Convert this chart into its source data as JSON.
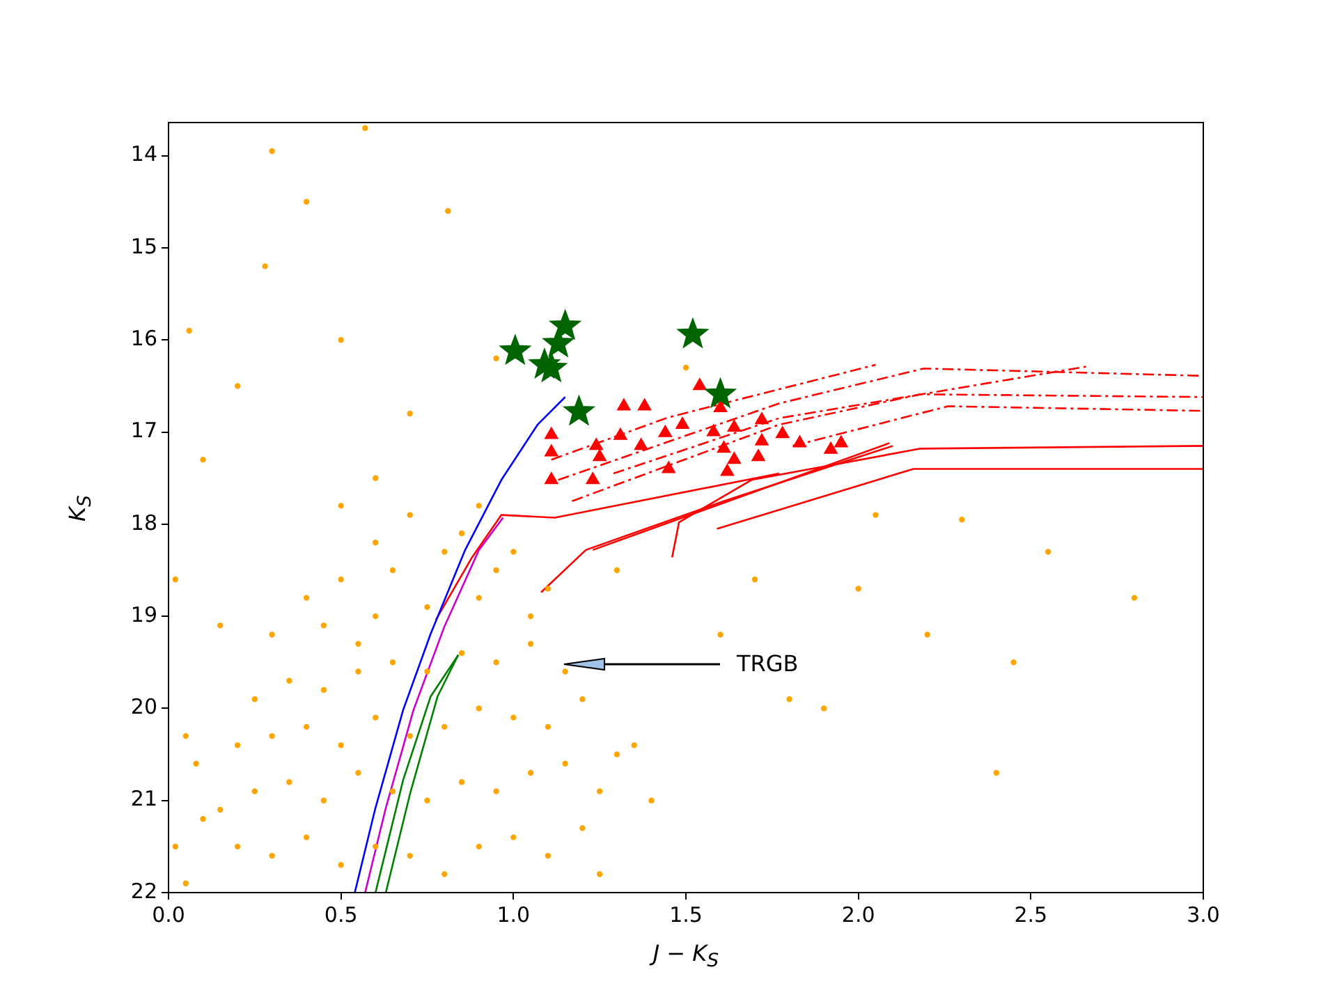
{
  "chart_data": {
    "type": "scatter",
    "xlabel": "J − K$_{S}$",
    "ylabel": "K$_{S}$",
    "xlim": [
      0,
      3
    ],
    "ylim": [
      22,
      13.64
    ],
    "xticks": [
      {
        "value": 0,
        "label": "0.0"
      },
      {
        "value": 0.5,
        "label": "0.5"
      },
      {
        "value": 1,
        "label": "1.0"
      },
      {
        "value": 1.5,
        "label": "1.5"
      },
      {
        "value": 2,
        "label": "2.0"
      },
      {
        "value": 2.5,
        "label": "2.5"
      },
      {
        "value": 3,
        "label": "3.0"
      }
    ],
    "yticks": [
      14,
      15,
      16,
      17,
      18,
      19,
      20,
      21,
      22
    ],
    "grid": false,
    "legend": false,
    "annotations": [
      "TRGB"
    ],
    "series": [
      {
        "marker": "circle",
        "color": "#ffa500",
        "x": [
          0.3,
          0.4,
          0.57,
          0.81,
          0.28,
          0.06,
          0.2,
          0.5,
          0.95,
          1.5,
          2.05,
          2.3,
          2.55,
          2.8,
          2.4,
          1.9,
          2.2,
          1.7,
          2.0,
          0.02,
          0.1,
          0.5,
          0.7,
          0.6,
          1.3,
          1.6,
          2.45,
          1.8,
          0.15,
          0.05,
          0.2,
          0.3,
          0.4,
          0.5,
          0.6,
          0.7,
          0.8,
          0.9,
          1.0,
          1.1,
          1.2,
          0.25,
          0.35,
          0.45,
          0.55,
          0.65,
          0.75,
          0.85,
          0.95,
          1.05,
          1.15,
          1.25,
          0.1,
          0.2,
          0.3,
          0.4,
          0.5,
          0.6,
          0.7,
          0.8,
          0.9,
          1.0,
          1.1,
          1.2,
          1.3,
          0.05,
          0.15,
          0.25,
          0.35,
          0.45,
          0.55,
          0.65,
          0.75,
          0.85,
          0.95,
          1.05,
          1.15,
          0.3,
          0.45,
          0.6,
          0.75,
          0.9,
          1.05,
          0.5,
          0.65,
          0.8,
          0.95,
          1.1,
          0.7,
          0.85,
          1.0,
          0.6,
          0.9,
          1.4,
          1.35,
          0.02,
          0.08,
          1.25,
          0.4,
          0.55
        ],
        "values": [
          13.95,
          14.5,
          13.7,
          14.6,
          15.2,
          15.9,
          16.5,
          16.0,
          16.2,
          16.3,
          17.9,
          17.95,
          18.3,
          18.8,
          20.7,
          20.0,
          19.2,
          18.6,
          18.7,
          18.6,
          17.3,
          17.8,
          16.8,
          18.2,
          18.5,
          19.2,
          19.5,
          19.9,
          19.1,
          20.3,
          21.5,
          21.6,
          21.4,
          21.7,
          21.5,
          21.6,
          21.8,
          21.5,
          21.4,
          21.6,
          21.3,
          20.9,
          20.8,
          21.0,
          20.7,
          20.9,
          21.0,
          20.8,
          20.9,
          20.7,
          20.6,
          20.9,
          21.2,
          20.4,
          20.3,
          20.2,
          20.4,
          20.1,
          20.3,
          20.2,
          20.0,
          20.1,
          20.2,
          19.9,
          20.5,
          21.9,
          21.1,
          19.9,
          19.7,
          19.8,
          19.6,
          19.5,
          19.6,
          19.4,
          19.5,
          19.3,
          19.6,
          19.2,
          19.1,
          19.0,
          18.9,
          18.8,
          19.0,
          18.6,
          18.5,
          18.3,
          18.5,
          18.7,
          17.9,
          18.1,
          18.3,
          17.5,
          17.8,
          21.0,
          20.4,
          21.5,
          20.6,
          21.8,
          18.8,
          19.3
        ]
      },
      {
        "type": "line",
        "marker": "none",
        "line_style": "solid",
        "color": "#0000ff",
        "x": [
          0.54,
          0.6,
          0.68,
          0.76,
          0.86,
          0.965,
          1.07,
          1.15
        ],
        "values": [
          22,
          21.08,
          20.02,
          19.19,
          18.28,
          17.52,
          16.92,
          16.62
        ]
      },
      {
        "type": "line",
        "marker": "none",
        "line_style": "solid",
        "color": "#cc00cc",
        "x": [
          0.57,
          0.63,
          0.71,
          0.8,
          0.9,
          0.97
        ],
        "values": [
          22,
          21.08,
          20.02,
          19.11,
          18.28,
          17.93
        ]
      },
      {
        "type": "line",
        "marker": "none",
        "line_style": "solid",
        "color": "#008000",
        "x": [
          0.6,
          0.68,
          0.76,
          0.84
        ],
        "values": [
          22,
          20.78,
          19.87,
          19.42
        ]
      },
      {
        "type": "line",
        "marker": "none",
        "line_style": "solid",
        "color": "#008000",
        "x": [
          0.63,
          0.7,
          0.78,
          0.84
        ],
        "values": [
          22,
          20.93,
          19.87,
          19.42
        ]
      },
      {
        "type": "line",
        "marker": "none",
        "line_style": "solid",
        "color": "#ff0000",
        "x": [
          0.775,
          0.88,
          0.965,
          1.12,
          1.77
        ],
        "values": [
          19.04,
          18.36,
          17.9,
          17.93,
          17.45
        ]
      },
      {
        "type": "line",
        "marker": "none",
        "line_style": "solid",
        "color": "#ff0000",
        "x": [
          1.08,
          1.21,
          1.61,
          2.1
        ],
        "values": [
          18.74,
          18.28,
          17.75,
          17.15
        ]
      },
      {
        "type": "line",
        "marker": "none",
        "line_style": "solid",
        "color": "#ff0000",
        "x": [
          1.46,
          1.48,
          1.69,
          2.18,
          3.0
        ],
        "values": [
          18.36,
          17.98,
          17.52,
          17.18,
          17.15
        ]
      },
      {
        "type": "line",
        "marker": "none",
        "line_style": "solid",
        "color": "#ff0000",
        "x": [
          1.59,
          2.16,
          3.0
        ],
        "values": [
          18.05,
          17.4,
          17.4
        ]
      },
      {
        "type": "line",
        "marker": "none",
        "line_style": "solid",
        "color": "#ff0000",
        "x": [
          1.23,
          2.09
        ],
        "values": [
          18.28,
          17.12
        ]
      },
      {
        "type": "line",
        "marker": "none",
        "line_style": "dashed",
        "color": "#ff0000",
        "x": [
          1.11,
          1.45,
          2.05
        ],
        "values": [
          17.3,
          16.84,
          16.27
        ]
      },
      {
        "type": "line",
        "marker": "none",
        "line_style": "dashed",
        "color": "#ff0000",
        "x": [
          1.13,
          1.53,
          1.77,
          2.19,
          3.0
        ],
        "values": [
          17.52,
          17.0,
          16.69,
          16.31,
          16.39
        ]
      },
      {
        "type": "line",
        "marker": "none",
        "line_style": "dashed",
        "color": "#ff0000",
        "x": [
          1.17,
          1.77,
          2.18,
          3.0
        ],
        "values": [
          17.75,
          16.92,
          16.59,
          16.62
        ]
      },
      {
        "type": "line",
        "marker": "none",
        "line_style": "dashed",
        "color": "#ff0000",
        "x": [
          1.29,
          1.77,
          2.66
        ],
        "values": [
          17.45,
          16.85,
          16.29
        ]
      },
      {
        "type": "line",
        "marker": "none",
        "line_style": "dashed",
        "color": "#ff0000",
        "x": [
          1.81,
          2.26,
          3.0
        ],
        "values": [
          17.15,
          16.72,
          16.77
        ]
      },
      {
        "marker": "triangle",
        "color": "#ff0000",
        "x": [
          1.54,
          1.32,
          1.38,
          1.6,
          1.11,
          1.24,
          1.37,
          1.44,
          1.49,
          1.58,
          1.64,
          1.72,
          1.72,
          1.83,
          1.92,
          1.95,
          1.61,
          1.71,
          1.64,
          1.11,
          1.45,
          1.62,
          1.11,
          1.23,
          1.25,
          1.31,
          1.78
        ],
        "values": [
          16.5,
          16.72,
          16.72,
          16.74,
          17.03,
          17.15,
          17.15,
          17.01,
          16.92,
          17.0,
          16.95,
          16.87,
          17.1,
          17.12,
          17.19,
          17.12,
          17.18,
          17.27,
          17.3,
          17.22,
          17.4,
          17.43,
          17.52,
          17.52,
          17.27,
          17.04,
          17.02
        ]
      },
      {
        "marker": "star",
        "color": "#006400",
        "x": [
          1.005,
          1.15,
          1.13,
          1.09,
          1.11,
          1.19,
          1.52,
          1.6
        ],
        "values": [
          16.12,
          15.85,
          16.04,
          16.27,
          16.31,
          16.78,
          15.94,
          16.59
        ]
      }
    ]
  }
}
